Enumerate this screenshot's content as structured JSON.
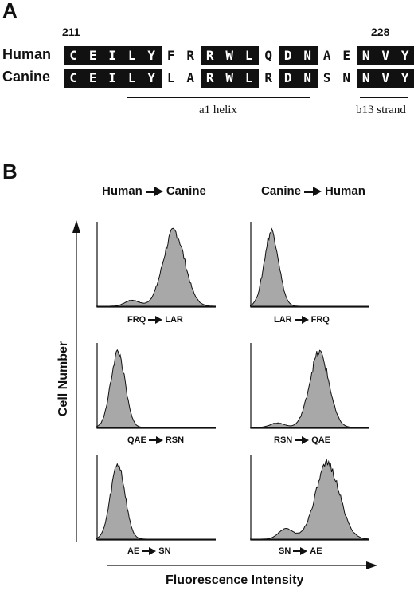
{
  "panel_a": {
    "letter": "A",
    "start_pos": "211",
    "end_pos": "228",
    "human_label": "Human",
    "canine_label": "Canine",
    "human_seq": [
      "C",
      "E",
      "I",
      "L",
      "Y",
      "F",
      "R",
      "R",
      "W",
      "L",
      "Q",
      "D",
      "N",
      "A",
      "E",
      "N",
      "V",
      "Y"
    ],
    "canine_seq": [
      "C",
      "E",
      "I",
      "L",
      "Y",
      "L",
      "A",
      "R",
      "W",
      "L",
      "R",
      "D",
      "N",
      "S",
      "N",
      "N",
      "V",
      "Y"
    ],
    "highlight": [
      1,
      1,
      1,
      1,
      1,
      0,
      0,
      1,
      1,
      1,
      0,
      1,
      1,
      0,
      0,
      1,
      1,
      1
    ],
    "helix_label": "a1 helix",
    "strand_label": "b13 strand"
  },
  "panel_b": {
    "letter": "B",
    "left_header": {
      "from": "Human",
      "to": "Canine"
    },
    "right_header": {
      "from": "Canine",
      "to": "Human"
    },
    "y_axis_label": "Cell  Number",
    "x_axis_label": "Fluorescence Intensity",
    "plots": [
      {
        "from": "FRQ",
        "to": "LAR",
        "mean": 0.65,
        "sd": 0.09,
        "minor": 0.08
      },
      {
        "from": "LAR",
        "to": "FRQ",
        "mean": 0.18,
        "sd": 0.06,
        "minor": 0.0
      },
      {
        "from": "QAE",
        "to": "RSN",
        "mean": 0.18,
        "sd": 0.06,
        "minor": 0.0
      },
      {
        "from": "RSN",
        "to": "QAE",
        "mean": 0.58,
        "sd": 0.08,
        "minor": 0.06
      },
      {
        "from": "AE",
        "to": "SN",
        "mean": 0.18,
        "sd": 0.06,
        "minor": 0.0
      },
      {
        "from": "SN",
        "to": "AE",
        "mean": 0.65,
        "sd": 0.1,
        "minor": 0.14
      }
    ]
  }
}
